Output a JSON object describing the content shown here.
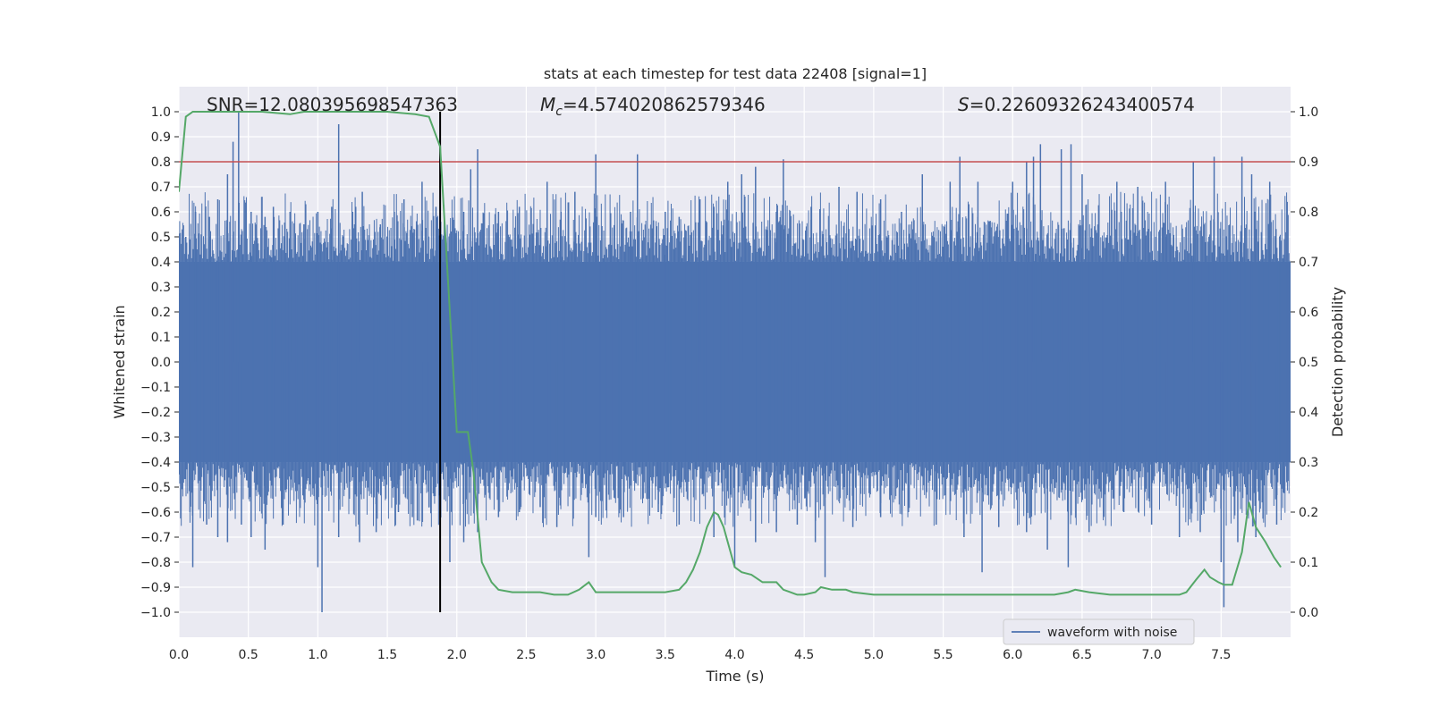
{
  "chart_data": {
    "type": "line",
    "title": "stats at each timestep for test data 22408 [signal=1]",
    "xlabel": "Time (s)",
    "ylabel_left": "Whitened strain",
    "ylabel_right": "Detection probability",
    "xlim": [
      0.0,
      8.0
    ],
    "ylim_left": [
      -1.1,
      1.1
    ],
    "ylim_right": [
      -0.05,
      1.05
    ],
    "x_ticks": [
      0.0,
      0.5,
      1.0,
      1.5,
      2.0,
      2.5,
      3.0,
      3.5,
      4.0,
      4.5,
      5.0,
      5.5,
      6.0,
      6.5,
      7.0,
      7.5
    ],
    "x_tick_labels": [
      "0.0",
      "0.5",
      "1.0",
      "1.5",
      "2.0",
      "2.5",
      "3.0",
      "3.5",
      "4.0",
      "4.5",
      "5.0",
      "5.5",
      "6.0",
      "6.5",
      "7.0",
      "7.5"
    ],
    "y_ticks_left": [
      1.0,
      0.9,
      0.8,
      0.7,
      0.6,
      0.5,
      0.4,
      0.3,
      0.2,
      0.1,
      0.0,
      -0.1,
      -0.2,
      -0.3,
      -0.4,
      -0.5,
      -0.6,
      -0.7,
      -0.8,
      -0.9,
      -1.0
    ],
    "y_tick_labels_left": [
      "1.0",
      "0.9",
      "0.8",
      "0.7",
      "0.6",
      "0.5",
      "0.4",
      "0.3",
      "0.2",
      "0.1",
      "0.0",
      "−0.1",
      "−0.2",
      "−0.3",
      "−0.4",
      "−0.5",
      "−0.6",
      "−0.7",
      "−0.8",
      "−0.9",
      "−1.0"
    ],
    "y_ticks_right": [
      1.0,
      0.9,
      0.8,
      0.7,
      0.6,
      0.5,
      0.4,
      0.3,
      0.2,
      0.1,
      0.0
    ],
    "y_tick_labels_right": [
      "1.0",
      "0.9",
      "0.8",
      "0.7",
      "0.6",
      "0.5",
      "0.4",
      "0.3",
      "0.2",
      "0.1",
      "0.0"
    ],
    "annotations": {
      "snr": "SNR=12.080395698547363",
      "mc_symbol": "M",
      "mc_subscript": "c",
      "mc_value": "=4.574020862579346",
      "s_symbol": "S",
      "s_value": "=0.22609326243400574"
    },
    "threshold_line": {
      "y_right": 0.9,
      "color": "#c44e52"
    },
    "marker_line": {
      "x": 1.88,
      "y_range_left": [
        -1.0,
        1.0
      ],
      "color": "#000000"
    },
    "series": [
      {
        "name": "waveform with noise",
        "axis": "left",
        "color": "#4c72b0",
        "style": "dense-noise",
        "body_amplitude": 0.4,
        "spikes_positive": [
          [
            0.05,
            0.5
          ],
          [
            0.12,
            0.6
          ],
          [
            0.22,
            0.58
          ],
          [
            0.28,
            0.65
          ],
          [
            0.35,
            0.75
          ],
          [
            0.39,
            0.88
          ],
          [
            0.43,
            1.0
          ],
          [
            0.52,
            0.6
          ],
          [
            0.62,
            0.58
          ],
          [
            0.68,
            0.62
          ],
          [
            0.8,
            0.6
          ],
          [
            0.9,
            0.55
          ],
          [
            1.0,
            0.6
          ],
          [
            1.1,
            0.62
          ],
          [
            1.15,
            0.95
          ],
          [
            1.25,
            0.6
          ],
          [
            1.32,
            0.68
          ],
          [
            1.45,
            0.55
          ],
          [
            1.55,
            0.6
          ],
          [
            1.62,
            0.65
          ],
          [
            1.75,
            0.72
          ],
          [
            1.85,
            0.62
          ],
          [
            2.05,
            0.6
          ],
          [
            2.1,
            0.77
          ],
          [
            2.15,
            0.85
          ],
          [
            2.3,
            0.6
          ],
          [
            2.45,
            0.62
          ],
          [
            2.65,
            0.72
          ],
          [
            2.75,
            0.6
          ],
          [
            2.85,
            0.68
          ],
          [
            3.0,
            0.83
          ],
          [
            3.25,
            0.6
          ],
          [
            3.3,
            0.83
          ],
          [
            3.5,
            0.6
          ],
          [
            3.6,
            0.58
          ],
          [
            3.75,
            0.65
          ],
          [
            3.85,
            0.62
          ],
          [
            3.95,
            0.72
          ],
          [
            4.05,
            0.75
          ],
          [
            4.15,
            0.78
          ],
          [
            4.3,
            0.6
          ],
          [
            4.35,
            0.81
          ],
          [
            4.55,
            0.62
          ],
          [
            4.75,
            0.7
          ],
          [
            4.88,
            0.68
          ],
          [
            5.05,
            0.65
          ],
          [
            5.2,
            0.6
          ],
          [
            5.35,
            0.75
          ],
          [
            5.55,
            0.72
          ],
          [
            5.62,
            0.82
          ],
          [
            5.75,
            0.72
          ],
          [
            6.0,
            0.72
          ],
          [
            6.1,
            0.8
          ],
          [
            6.15,
            0.82
          ],
          [
            6.2,
            0.87
          ],
          [
            6.35,
            0.85
          ],
          [
            6.42,
            0.87
          ],
          [
            6.5,
            0.75
          ],
          [
            6.75,
            0.72
          ],
          [
            6.9,
            0.7
          ],
          [
            7.1,
            0.72
          ],
          [
            7.3,
            0.8
          ],
          [
            7.45,
            0.82
          ],
          [
            7.65,
            0.82
          ],
          [
            7.72,
            0.75
          ],
          [
            7.85,
            0.72
          ]
        ],
        "spikes_negative": [
          [
            0.08,
            -0.6
          ],
          [
            0.1,
            -0.82
          ],
          [
            0.2,
            -0.65
          ],
          [
            0.28,
            -0.7
          ],
          [
            0.35,
            -0.72
          ],
          [
            0.45,
            -0.65
          ],
          [
            0.52,
            -0.7
          ],
          [
            0.62,
            -0.75
          ],
          [
            0.75,
            -0.65
          ],
          [
            0.9,
            -0.55
          ],
          [
            1.0,
            -0.82
          ],
          [
            1.03,
            -1.0
          ],
          [
            1.15,
            -0.7
          ],
          [
            1.3,
            -0.72
          ],
          [
            1.42,
            -0.68
          ],
          [
            1.58,
            -0.6
          ],
          [
            1.68,
            -0.62
          ],
          [
            1.8,
            -0.58
          ],
          [
            1.95,
            -0.8
          ],
          [
            2.05,
            -0.72
          ],
          [
            2.15,
            -0.68
          ],
          [
            2.3,
            -0.62
          ],
          [
            2.45,
            -0.6
          ],
          [
            2.6,
            -0.58
          ],
          [
            2.72,
            -0.66
          ],
          [
            2.95,
            -0.78
          ],
          [
            3.0,
            -0.62
          ],
          [
            3.2,
            -0.62
          ],
          [
            3.45,
            -0.6
          ],
          [
            3.6,
            -0.65
          ],
          [
            3.85,
            -0.7
          ],
          [
            4.0,
            -0.82
          ],
          [
            4.15,
            -0.72
          ],
          [
            4.3,
            -0.68
          ],
          [
            4.45,
            -0.65
          ],
          [
            4.58,
            -0.72
          ],
          [
            4.65,
            -0.86
          ],
          [
            4.85,
            -0.66
          ],
          [
            5.05,
            -0.62
          ],
          [
            5.25,
            -0.6
          ],
          [
            5.45,
            -0.65
          ],
          [
            5.65,
            -0.7
          ],
          [
            5.78,
            -0.84
          ],
          [
            5.9,
            -0.66
          ],
          [
            6.1,
            -0.68
          ],
          [
            6.25,
            -0.75
          ],
          [
            6.4,
            -0.82
          ],
          [
            6.55,
            -0.68
          ],
          [
            6.8,
            -0.6
          ],
          [
            7.0,
            -0.65
          ],
          [
            7.2,
            -0.7
          ],
          [
            7.35,
            -0.68
          ],
          [
            7.5,
            -0.8
          ],
          [
            7.52,
            -0.98
          ],
          [
            7.62,
            -0.72
          ],
          [
            7.75,
            -0.7
          ],
          [
            7.9,
            -0.65
          ]
        ]
      },
      {
        "name": "detection probability",
        "axis": "right",
        "color": "#55a868",
        "x": [
          0.0,
          0.05,
          0.1,
          0.3,
          0.6,
          0.8,
          0.9,
          1.2,
          1.5,
          1.7,
          1.8,
          1.88,
          1.95,
          2.0,
          2.08,
          2.12,
          2.18,
          2.25,
          2.3,
          2.4,
          2.6,
          2.7,
          2.8,
          2.88,
          2.95,
          3.0,
          3.1,
          3.3,
          3.5,
          3.6,
          3.65,
          3.7,
          3.75,
          3.8,
          3.85,
          3.88,
          3.92,
          3.95,
          4.0,
          4.05,
          4.12,
          4.2,
          4.25,
          4.3,
          4.35,
          4.4,
          4.45,
          4.5,
          4.58,
          4.62,
          4.7,
          4.8,
          4.85,
          5.0,
          5.3,
          5.8,
          6.1,
          6.3,
          6.4,
          6.45,
          6.55,
          6.7,
          7.0,
          7.2,
          7.25,
          7.32,
          7.38,
          7.42,
          7.48,
          7.52,
          7.58,
          7.65,
          7.7,
          7.75,
          7.82,
          7.88,
          7.93
        ],
        "y": [
          0.84,
          0.99,
          1.0,
          1.0,
          1.0,
          0.995,
          1.0,
          1.0,
          1.0,
          0.995,
          0.99,
          0.93,
          0.6,
          0.36,
          0.36,
          0.28,
          0.1,
          0.06,
          0.045,
          0.04,
          0.04,
          0.035,
          0.035,
          0.045,
          0.06,
          0.04,
          0.04,
          0.04,
          0.04,
          0.045,
          0.06,
          0.085,
          0.12,
          0.17,
          0.2,
          0.195,
          0.17,
          0.14,
          0.09,
          0.08,
          0.075,
          0.06,
          0.06,
          0.06,
          0.045,
          0.04,
          0.035,
          0.035,
          0.04,
          0.05,
          0.045,
          0.045,
          0.04,
          0.035,
          0.035,
          0.035,
          0.035,
          0.035,
          0.04,
          0.045,
          0.04,
          0.035,
          0.035,
          0.035,
          0.04,
          0.065,
          0.085,
          0.07,
          0.06,
          0.055,
          0.055,
          0.12,
          0.22,
          0.17,
          0.14,
          0.11,
          0.09
        ]
      }
    ],
    "legend": {
      "label": "waveform with noise",
      "placement": "lower-right"
    }
  }
}
